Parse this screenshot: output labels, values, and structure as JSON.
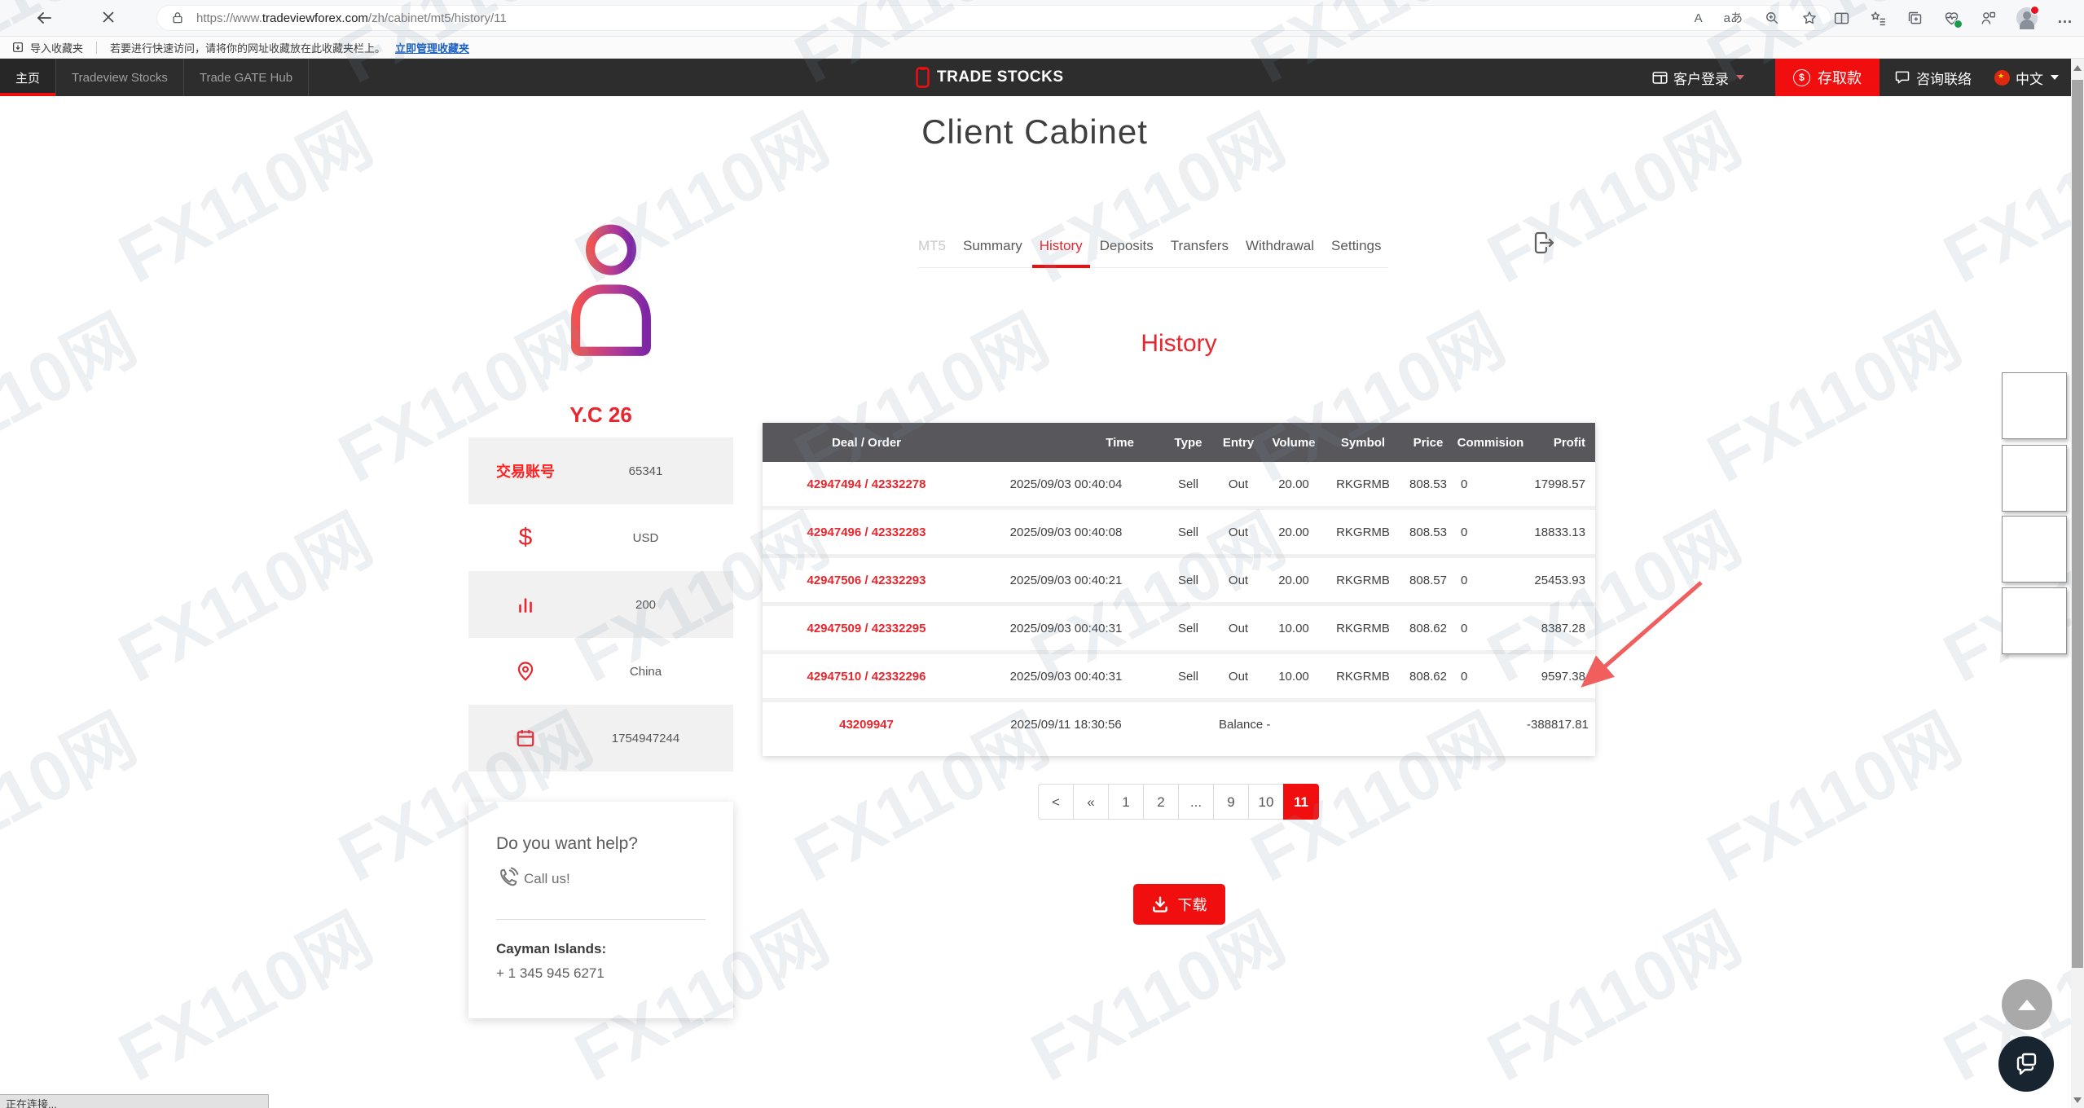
{
  "browser": {
    "url": {
      "scheme": "https://www.",
      "domain": "tradeviewforex.com",
      "path": "/zh/cabinet/mt5/history/11"
    },
    "bookmarks_bar": {
      "import_label": "导入收藏夹",
      "hint": "若要进行快速访问，请将你的网址收藏放在此收藏夹栏上。",
      "manage_link": "立即管理收藏夹"
    },
    "status_text": "正在连接..."
  },
  "icons": {
    "read_aloud_label": "A",
    "translate_label": "aあ",
    "dollar": "$",
    "more_dots": "…",
    "coin_dollar": "$",
    "flag_star": "★"
  },
  "site_nav": {
    "items": [
      {
        "label": "主页",
        "active": true
      },
      {
        "label": "Tradeview Stocks",
        "active": false
      },
      {
        "label": "Trade GATE Hub",
        "active": false
      }
    ],
    "brand": "TRADE STOCKS",
    "login_label": "客户登录",
    "deposit_label": "存取款",
    "contact_label": "咨询联络",
    "language_label": "中文"
  },
  "page": {
    "title": "Client Cabinet",
    "tabs": [
      {
        "label": "MT5",
        "muted": true
      },
      {
        "label": "Summary"
      },
      {
        "label": "History",
        "active": true
      },
      {
        "label": "Deposits"
      },
      {
        "label": "Transfers"
      },
      {
        "label": "Withdrawal"
      },
      {
        "label": "Settings"
      }
    ],
    "profile": {
      "name": "Y.C 26",
      "account_label": "交易账号",
      "account_number": "65341",
      "currency": "USD",
      "leverage": "200",
      "country": "China",
      "timestamp": "1754947244"
    },
    "help": {
      "heading": "Do you want help?",
      "call_label": "Call us!",
      "region_label": "Cayman Islands:",
      "phone": "+ 1 345 945 6271"
    },
    "history": {
      "heading": "History",
      "table": {
        "columns": [
          "Deal / Order",
          "Time",
          "Type",
          "Entry",
          "Volume",
          "Symbol",
          "Price",
          "Commision",
          "Profit"
        ],
        "rows": [
          {
            "deal": "42947494 / 42332278",
            "time": "2025/09/03 00:40:04",
            "type": "Sell",
            "entry": "Out",
            "volume": "20.00",
            "symbol": "RKGRMB",
            "price": "808.53",
            "commission": "0",
            "profit": "17998.57"
          },
          {
            "deal": "42947496 / 42332283",
            "time": "2025/09/03 00:40:08",
            "type": "Sell",
            "entry": "Out",
            "volume": "20.00",
            "symbol": "RKGRMB",
            "price": "808.53",
            "commission": "0",
            "profit": "18833.13"
          },
          {
            "deal": "42947506 / 42332293",
            "time": "2025/09/03 00:40:21",
            "type": "Sell",
            "entry": "Out",
            "volume": "20.00",
            "symbol": "RKGRMB",
            "price": "808.57",
            "commission": "0",
            "profit": "25453.93"
          },
          {
            "deal": "42947509 / 42332295",
            "time": "2025/09/03 00:40:31",
            "type": "Sell",
            "entry": "Out",
            "volume": "10.00",
            "symbol": "RKGRMB",
            "price": "808.62",
            "commission": "0",
            "profit": "8387.28"
          },
          {
            "deal": "42947510 / 42332296",
            "time": "2025/09/03 00:40:31",
            "type": "Sell",
            "entry": "Out",
            "volume": "10.00",
            "symbol": "RKGRMB",
            "price": "808.62",
            "commission": "0",
            "profit": "9597.38"
          }
        ],
        "balance_row": {
          "deal": "43209947",
          "time": "2025/09/11 18:30:56",
          "type_label": "Balance -",
          "profit": "-388817.81"
        }
      },
      "pagination": {
        "items": [
          "<",
          "«",
          "1",
          "2",
          "...",
          "9",
          "10",
          "11"
        ],
        "active": "11"
      },
      "download_label": "下载"
    }
  },
  "watermark": {
    "text": "FX110网"
  },
  "colors": {
    "accent_red": "#f10e0e",
    "text_red": "#e8262d",
    "table_header_bg": "#58575c",
    "nav_bg": "#2d2d2d"
  }
}
